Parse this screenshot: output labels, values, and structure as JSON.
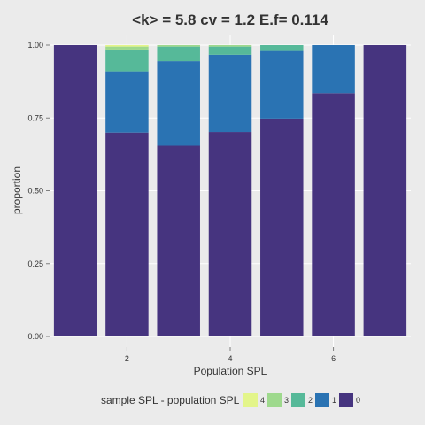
{
  "chart_data": {
    "type": "bar",
    "stacked": true,
    "title": "<k> = 5.8 cv = 1.2 E.f= 0.114",
    "xlabel": "Population SPL",
    "ylabel": "proportion",
    "x": [
      1,
      2,
      3,
      4,
      5,
      6,
      7
    ],
    "x_ticks": [
      2,
      4,
      6
    ],
    "xlim": [
      0.5,
      7.5
    ],
    "ylim": [
      0,
      1
    ],
    "y_ticks": [
      "0.00",
      "0.25",
      "0.50",
      "0.75",
      "1.00"
    ],
    "grid": true,
    "legend": {
      "title": "sample SPL - population SPL",
      "position": "bottom",
      "entries": [
        "4",
        "3",
        "2",
        "1",
        "0"
      ]
    },
    "series": [
      {
        "name": "0",
        "color": "#46347f",
        "values": [
          1.0,
          0.7,
          0.655,
          0.702,
          0.748,
          0.835,
          1.0
        ]
      },
      {
        "name": "1",
        "color": "#2a73b3",
        "values": [
          0.0,
          0.21,
          0.29,
          0.265,
          0.232,
          0.165,
          0.0
        ]
      },
      {
        "name": "2",
        "color": "#56b999",
        "values": [
          0.0,
          0.075,
          0.05,
          0.028,
          0.02,
          0.0,
          0.0
        ]
      },
      {
        "name": "3",
        "color": "#9ed98d",
        "values": [
          0.0,
          0.01,
          0.005,
          0.005,
          0.0,
          0.0,
          0.0
        ]
      },
      {
        "name": "4",
        "color": "#e3f58a",
        "values": [
          0.0,
          0.005,
          0.0,
          0.0,
          0.0,
          0.0,
          0.0
        ]
      }
    ]
  }
}
